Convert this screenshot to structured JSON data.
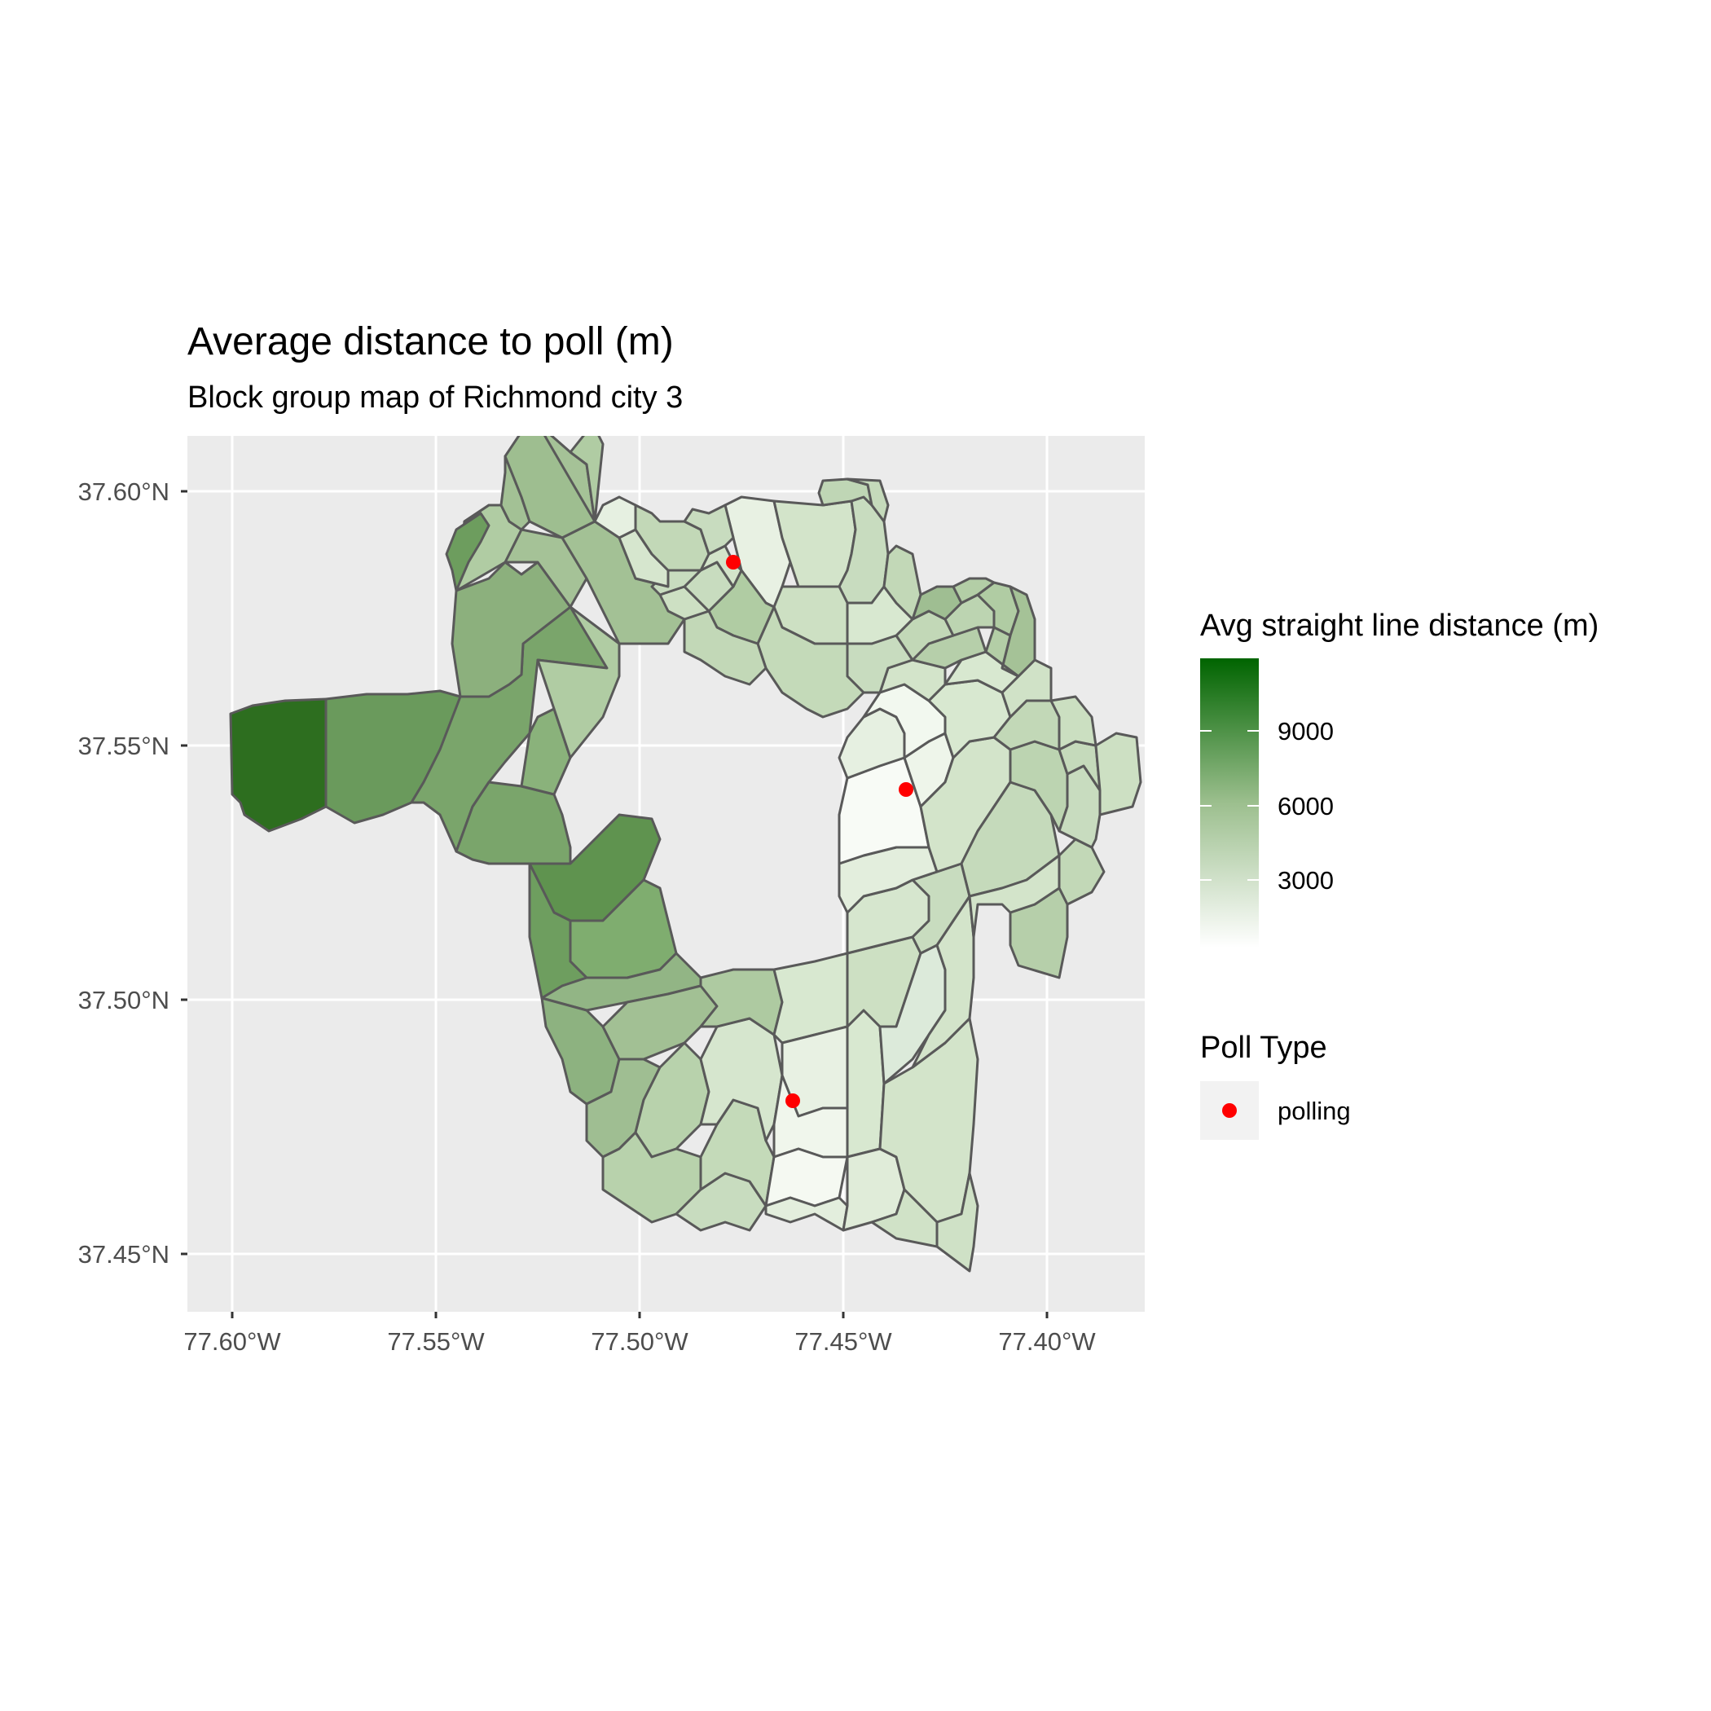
{
  "title": "Average distance to poll (m)",
  "subtitle": "Block group map of Richmond city 3",
  "axes": {
    "x": {
      "ticks": [
        "77.60°W",
        "77.55°W",
        "77.50°W",
        "77.45°W",
        "77.40°W"
      ]
    },
    "y": {
      "ticks": [
        "37.60°N",
        "37.55°N",
        "37.50°N",
        "37.45°N"
      ]
    }
  },
  "legend": {
    "fill": {
      "title": "Avg straight line distance (m)",
      "labels": [
        "9000",
        "6000",
        "3000"
      ],
      "low_color": "#ffffff",
      "high_color": "#006400"
    },
    "points": {
      "title": "Poll Type",
      "label": "polling",
      "color": "#ff0000"
    }
  },
  "colors": {
    "panel_background": "#ebebeb",
    "grid": "#ffffff",
    "border": "#595959"
  }
}
